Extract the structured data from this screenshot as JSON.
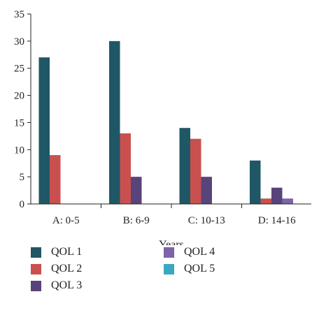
{
  "chart_data": {
    "type": "bar",
    "title": "",
    "xlabel": "Years",
    "ylabel": "",
    "ylim": [
      0,
      35
    ],
    "yticks": [
      0,
      5,
      10,
      15,
      20,
      25,
      30,
      35
    ],
    "categories": [
      "A: 0-5",
      "B: 6-9",
      "C: 10-13",
      "D: 14-16"
    ],
    "series": [
      {
        "name": "QOL 1",
        "color": "#1f5766",
        "values": [
          27,
          30,
          14,
          8
        ]
      },
      {
        "name": "QOL 2",
        "color": "#c9504e",
        "values": [
          9,
          13,
          12,
          1
        ]
      },
      {
        "name": "QOL 3",
        "color": "#58447b",
        "values": [
          0,
          5,
          5,
          3
        ]
      },
      {
        "name": "QOL 4",
        "color": "#7e63a8",
        "values": [
          0,
          0,
          0,
          1
        ]
      },
      {
        "name": "QOL 5",
        "color": "#3aa8c1",
        "values": [
          0,
          0,
          0,
          0
        ]
      }
    ],
    "grid": false,
    "legend_position": "bottom"
  }
}
